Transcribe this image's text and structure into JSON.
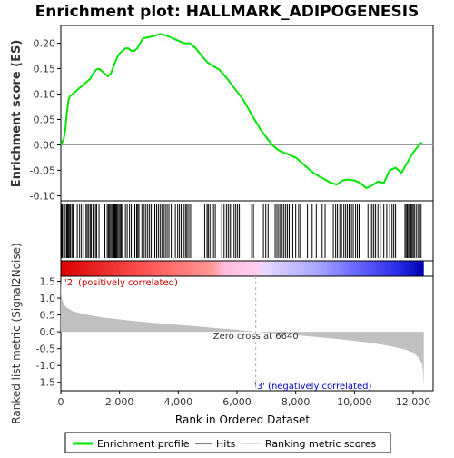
{
  "chart_data": {
    "type": "line",
    "title": "Enrichment plot: HALLMARK_ADIPOGENESIS",
    "top_panel": {
      "ylabel": "Enrichment score (ES)",
      "ylim": [
        -0.11,
        0.235
      ],
      "yticks": [
        "0.20",
        "0.15",
        "0.10",
        "0.05",
        "0.00",
        "-0.05",
        "-0.10"
      ],
      "ytick_values": [
        0.2,
        0.15,
        0.1,
        0.05,
        0.0,
        -0.05,
        -0.1
      ],
      "series": [
        {
          "name": "Enrichment profile",
          "color": "#00e600",
          "x": [
            0,
            100,
            150,
            200,
            250,
            300,
            400,
            500,
            600,
            700,
            800,
            900,
            1000,
            1100,
            1200,
            1300,
            1400,
            1500,
            1600,
            1700,
            1800,
            1900,
            2000,
            2100,
            2200,
            2300,
            2400,
            2500,
            2600,
            2700,
            2800,
            3000,
            3200,
            3400,
            3600,
            3800,
            4000,
            4200,
            4400,
            4600,
            4800,
            5000,
            5200,
            5400,
            5600,
            5800,
            6000,
            6200,
            6400,
            6600,
            6800,
            7000,
            7200,
            7400,
            7600,
            7800,
            8000,
            8200,
            8400,
            8600,
            8800,
            9000,
            9200,
            9400,
            9600,
            9800,
            10000,
            10200,
            10400,
            10600,
            10800,
            11000,
            11200,
            11400,
            11600,
            11800,
            12000,
            12200,
            12300
          ],
          "y": [
            0.0,
            0.012,
            0.03,
            0.06,
            0.085,
            0.095,
            0.1,
            0.105,
            0.11,
            0.115,
            0.12,
            0.125,
            0.13,
            0.14,
            0.148,
            0.15,
            0.145,
            0.14,
            0.135,
            0.14,
            0.155,
            0.17,
            0.18,
            0.185,
            0.19,
            0.19,
            0.185,
            0.185,
            0.19,
            0.2,
            0.21,
            0.212,
            0.215,
            0.218,
            0.215,
            0.21,
            0.205,
            0.2,
            0.2,
            0.19,
            0.175,
            0.162,
            0.155,
            0.148,
            0.135,
            0.12,
            0.105,
            0.09,
            0.07,
            0.05,
            0.03,
            0.015,
            0.0,
            -0.01,
            -0.015,
            -0.02,
            -0.025,
            -0.035,
            -0.045,
            -0.055,
            -0.062,
            -0.068,
            -0.075,
            -0.078,
            -0.07,
            -0.068,
            -0.07,
            -0.075,
            -0.085,
            -0.08,
            -0.072,
            -0.075,
            -0.05,
            -0.045,
            -0.055,
            -0.035,
            -0.015,
            0.0,
            0.005
          ]
        }
      ]
    },
    "hits": [
      30,
      60,
      110,
      150,
      200,
      230,
      260,
      300,
      330,
      380,
      420,
      560,
      640,
      700,
      780,
      860,
      900,
      950,
      1000,
      1040,
      1100,
      1180,
      1220,
      1300,
      1500,
      1580,
      1620,
      1660,
      1700,
      1740,
      1780,
      1810,
      1840,
      1870,
      1900,
      1940,
      1980,
      2020,
      2060,
      2100,
      2200,
      2260,
      2340,
      2400,
      2460,
      2520,
      2580,
      2620,
      2660,
      2760,
      2840,
      2900,
      2960,
      3020,
      3080,
      3140,
      3200,
      3260,
      3320,
      3380,
      3440,
      3500,
      3560,
      3620,
      3680,
      3760,
      3900,
      3980,
      4040,
      4100,
      4200,
      4260,
      4300,
      4360,
      4420,
      4900,
      4980,
      5020,
      5080,
      5200,
      5260,
      5480,
      5560,
      5640,
      5700,
      5760,
      5820,
      5900,
      5960,
      6020,
      6080,
      6500,
      6560,
      6900,
      6980,
      7060,
      7300,
      7360,
      7420,
      7480,
      7540,
      7600,
      7660,
      7720,
      7780,
      7840,
      7900,
      8000,
      8100,
      8160,
      8400,
      8560,
      8700,
      8900,
      9000,
      9200,
      9280,
      9360,
      9420,
      9500,
      9560,
      9640,
      9700,
      9760,
      9820,
      9900,
      9960,
      10040,
      10100,
      10160,
      10460,
      10540,
      10600,
      10660,
      10720,
      10800,
      10880,
      11000,
      11100,
      11200,
      11280,
      11340,
      11400,
      11720,
      11760,
      11800,
      11840,
      11880,
      11920,
      11960,
      12000,
      12040,
      12100,
      12160,
      12220,
      12270
    ],
    "bottom_panel": {
      "ylabel": "Ranked list metric (Signal2Noise)",
      "xlabel": "Rank in Ordered Dataset",
      "ylim": [
        -1.75,
        1.65
      ],
      "yticks": [
        "1.5",
        "1.0",
        "0.5",
        "0.0",
        "-0.5",
        "-1.0",
        "-1.5"
      ],
      "ytick_values": [
        1.5,
        1.0,
        0.5,
        0.0,
        -0.5,
        -1.0,
        -1.5
      ],
      "xticks": [
        "0",
        "2,000",
        "4,000",
        "6,000",
        "8,000",
        "10,000",
        "12,000"
      ],
      "xtick_values": [
        0,
        2000,
        4000,
        6000,
        8000,
        10000,
        12000
      ],
      "xlim": [
        0,
        12680
      ],
      "metric_x": [
        0,
        20,
        50,
        100,
        200,
        400,
        800,
        1500,
        2500,
        3500,
        4500,
        5300,
        6000,
        6640,
        7500,
        8500,
        9500,
        10500,
        11200,
        11700,
        12000,
        12200,
        12300,
        12340,
        12360
      ],
      "metric_y": [
        1.6,
        1.15,
        0.95,
        0.82,
        0.72,
        0.62,
        0.52,
        0.42,
        0.32,
        0.24,
        0.17,
        0.11,
        0.06,
        0.0,
        -0.06,
        -0.14,
        -0.22,
        -0.32,
        -0.42,
        -0.52,
        -0.62,
        -0.78,
        -0.95,
        -1.2,
        -1.65
      ],
      "zero_cross": 6640,
      "zero_cross_label": "Zero cross at 6640",
      "pos_label": "'2' (positively correlated)",
      "neg_label": "'3' (negatively correlated)",
      "pos_color": "#cc0000",
      "neg_color": "#0000cc"
    },
    "n_ranks": 12360,
    "legend": [
      {
        "label": "Enrichment profile",
        "color": "#00e600"
      },
      {
        "label": "Hits",
        "color": "#000000"
      },
      {
        "label": "Ranking metric scores",
        "color": "#bbbbbb"
      }
    ]
  }
}
